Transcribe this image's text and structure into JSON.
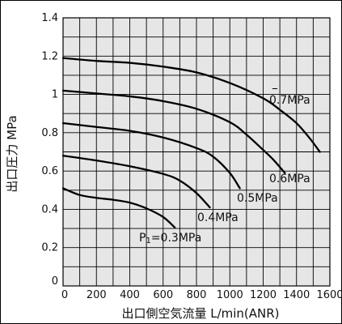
{
  "chart_data": {
    "type": "line",
    "xlabel": "出口側空気流量 L/min(ANR)",
    "ylabel": "出口圧力 MPa",
    "xlim": [
      0,
      1600
    ],
    "ylim": [
      0,
      1.4
    ],
    "x_ticks": [
      "0",
      "200",
      "400",
      "600",
      "800",
      "1000",
      "1200",
      "1400",
      "1600"
    ],
    "y_ticks": [
      "0",
      "0.2",
      "0.4",
      "0.6",
      "0.8",
      "1",
      "1.2",
      "1.4"
    ],
    "grid": true,
    "background": "#e6e6e6",
    "series": [
      {
        "name": "0.7MPa",
        "points": [
          [
            0,
            1.19
          ],
          [
            200,
            1.175
          ],
          [
            400,
            1.165
          ],
          [
            600,
            1.145
          ],
          [
            800,
            1.115
          ],
          [
            1000,
            1.06
          ],
          [
            1200,
            0.98
          ],
          [
            1300,
            0.92
          ],
          [
            1400,
            0.85
          ],
          [
            1480,
            0.77
          ],
          [
            1540,
            0.7
          ]
        ]
      },
      {
        "name": "0.6MPa",
        "points": [
          [
            0,
            1.02
          ],
          [
            200,
            1.005
          ],
          [
            400,
            0.99
          ],
          [
            600,
            0.965
          ],
          [
            800,
            0.925
          ],
          [
            1000,
            0.855
          ],
          [
            1100,
            0.79
          ],
          [
            1200,
            0.71
          ],
          [
            1260,
            0.66
          ],
          [
            1330,
            0.59
          ]
        ]
      },
      {
        "name": "0.5MPa",
        "points": [
          [
            0,
            0.85
          ],
          [
            200,
            0.83
          ],
          [
            400,
            0.81
          ],
          [
            600,
            0.775
          ],
          [
            800,
            0.72
          ],
          [
            900,
            0.675
          ],
          [
            1000,
            0.59
          ],
          [
            1060,
            0.51
          ]
        ]
      },
      {
        "name": "0.4MPa",
        "points": [
          [
            0,
            0.68
          ],
          [
            200,
            0.655
          ],
          [
            400,
            0.625
          ],
          [
            600,
            0.585
          ],
          [
            700,
            0.55
          ],
          [
            800,
            0.485
          ],
          [
            880,
            0.41
          ]
        ]
      },
      {
        "name": "P1=0.3MPa",
        "label_parts": [
          "P",
          "1",
          "=0.3MPa"
        ],
        "points": [
          [
            0,
            0.51
          ],
          [
            100,
            0.475
          ],
          [
            200,
            0.46
          ],
          [
            300,
            0.45
          ],
          [
            400,
            0.435
          ],
          [
            500,
            0.405
          ],
          [
            600,
            0.36
          ],
          [
            670,
            0.305
          ]
        ]
      }
    ]
  }
}
